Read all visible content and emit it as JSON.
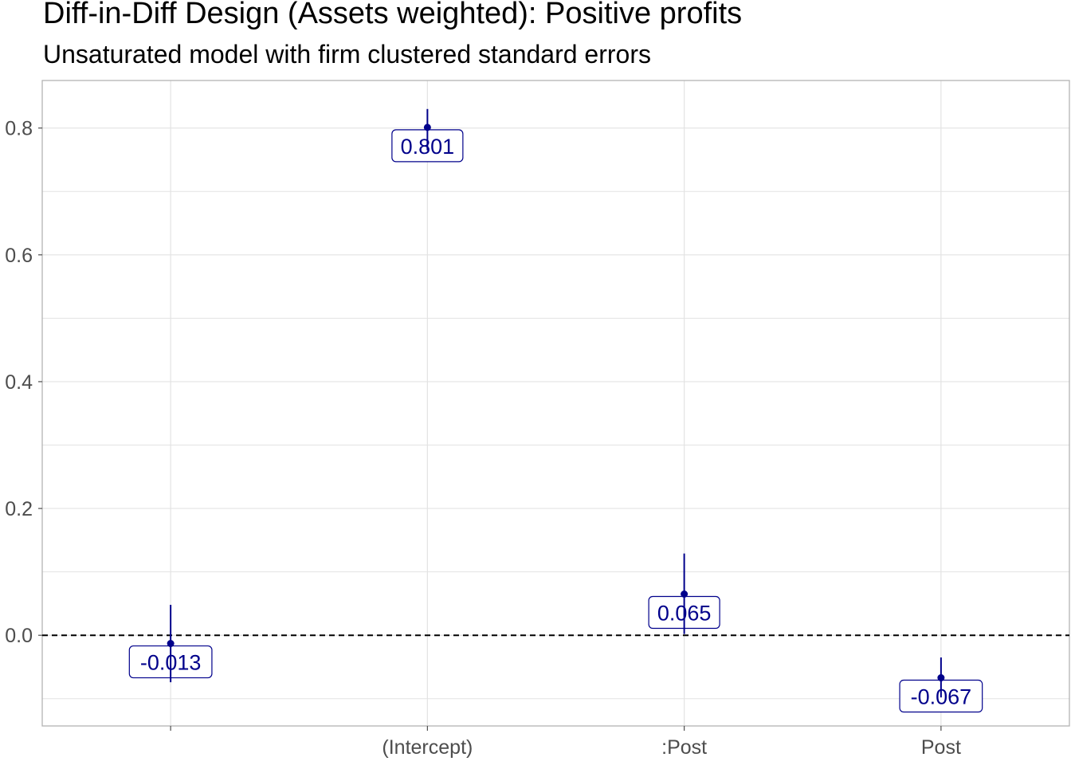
{
  "title": "Diff-in-Diff Design (Assets weighted): Positive profits",
  "subtitle": "Unsaturated model with firm clustered standard errors",
  "colors": {
    "point": "#00008b",
    "grid": "#e3e3e3",
    "axis": "#4d4d4d"
  },
  "chart_data": {
    "type": "scatter",
    "title": "Diff-in-Diff Design (Assets weighted): Positive profits",
    "subtitle": "Unsaturated model with firm clustered standard errors",
    "xlabel": "",
    "ylabel": "",
    "categories": [
      "",
      "(Intercept)",
      ":Post",
      "Post"
    ],
    "estimates": [
      -0.013,
      0.801,
      0.065,
      -0.067
    ],
    "ci_low": [
      -0.074,
      0.765,
      0.002,
      -0.098
    ],
    "ci_high": [
      0.048,
      0.83,
      0.129,
      -0.035
    ],
    "labels": [
      "-0.013",
      "0.801",
      "0.065",
      "-0.067"
    ],
    "ylim": [
      -0.143,
      0.875
    ],
    "yticks": [
      0.0,
      0.2,
      0.4,
      0.6,
      0.8
    ],
    "ytick_labels": [
      "0.0",
      "0.2",
      "0.4",
      "0.6",
      "0.8"
    ],
    "reference_line": 0.0,
    "grid": true,
    "legend": "none"
  }
}
